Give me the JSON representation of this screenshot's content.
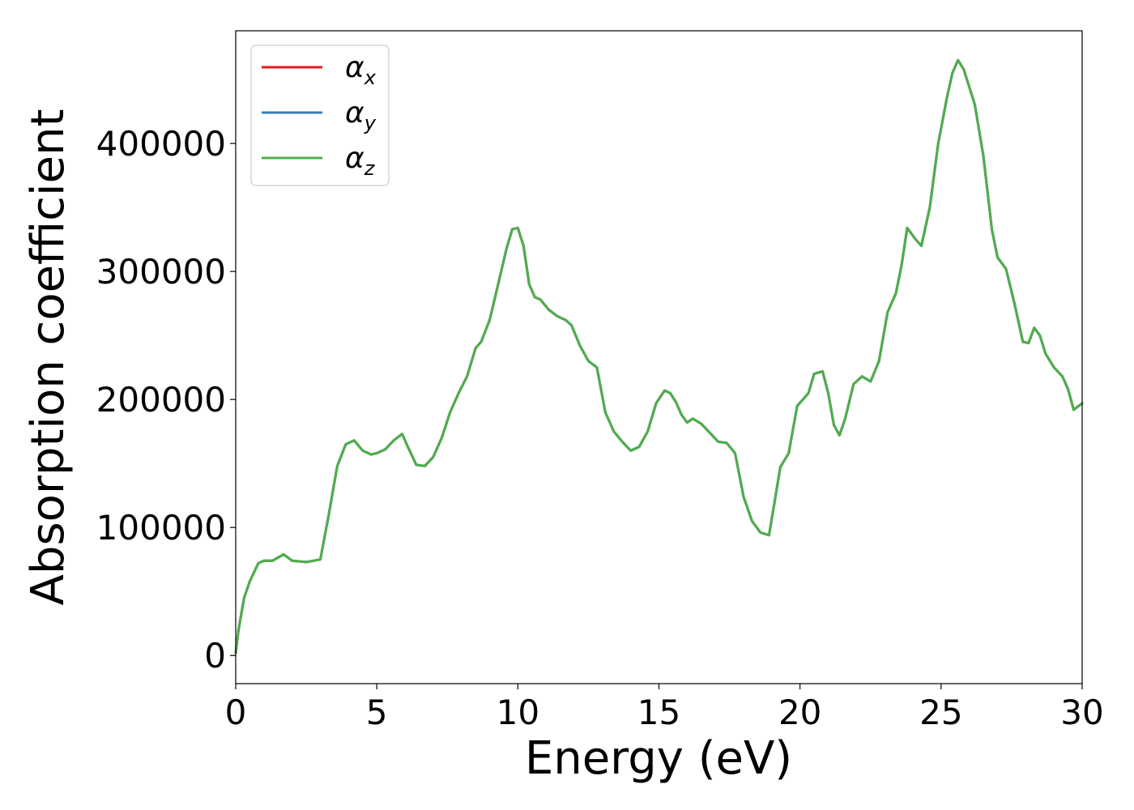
{
  "chart_data": {
    "type": "line",
    "title": "",
    "xlabel": "Energy (eV)",
    "ylabel": "Absorption coefficient",
    "xlim": [
      0,
      30
    ],
    "ylim": [
      -22000,
      488000
    ],
    "xticks": [
      0,
      5,
      10,
      15,
      20,
      25,
      30
    ],
    "xtick_labels": [
      "0",
      "5",
      "10",
      "15",
      "20",
      "25",
      "30"
    ],
    "yticks": [
      0,
      100000,
      200000,
      300000,
      400000
    ],
    "ytick_labels": [
      "0",
      "100000",
      "200000",
      "300000",
      "400000"
    ],
    "grid": false,
    "legend_position": "top-left",
    "x": [
      0,
      0.1,
      0.3,
      0.5,
      0.8,
      1.0,
      1.3,
      1.7,
      2.0,
      2.5,
      3.0,
      3.3,
      3.6,
      3.9,
      4.2,
      4.5,
      4.8,
      5.0,
      5.3,
      5.6,
      5.9,
      6.1,
      6.4,
      6.7,
      7.0,
      7.3,
      7.6,
      7.9,
      8.2,
      8.5,
      8.7,
      9.0,
      9.3,
      9.6,
      9.8,
      10.0,
      10.2,
      10.4,
      10.6,
      10.8,
      11.1,
      11.4,
      11.7,
      11.9,
      12.2,
      12.5,
      12.8,
      13.1,
      13.4,
      13.7,
      14.0,
      14.3,
      14.6,
      14.9,
      15.2,
      15.4,
      15.6,
      15.8,
      16.0,
      16.2,
      16.5,
      16.8,
      17.1,
      17.4,
      17.7,
      18.0,
      18.3,
      18.6,
      18.9,
      19.1,
      19.3,
      19.6,
      19.9,
      20.1,
      20.3,
      20.5,
      20.8,
      21.0,
      21.2,
      21.4,
      21.6,
      21.9,
      22.2,
      22.5,
      22.8,
      23.1,
      23.4,
      23.6,
      23.8,
      24.1,
      24.3,
      24.6,
      24.9,
      25.2,
      25.4,
      25.6,
      25.8,
      26.0,
      26.2,
      26.5,
      26.8,
      27.0,
      27.3,
      27.6,
      27.9,
      28.1,
      28.3,
      28.5,
      28.7,
      29.0,
      29.3,
      29.5,
      29.7,
      30.0
    ],
    "series": [
      {
        "name": "αx",
        "values": [
          2000,
          20000,
          45000,
          58000,
          72000,
          74000,
          74000,
          79000,
          74000,
          73000,
          75000,
          110000,
          148000,
          165000,
          168000,
          160000,
          157000,
          158000,
          161000,
          168000,
          173000,
          163000,
          149000,
          148000,
          155000,
          170000,
          190000,
          205000,
          218000,
          240000,
          245000,
          262000,
          290000,
          318000,
          333000,
          334000,
          320000,
          290000,
          280000,
          278000,
          270000,
          265000,
          262000,
          258000,
          242000,
          230000,
          225000,
          190000,
          175000,
          167000,
          160000,
          163000,
          175000,
          197000,
          207000,
          205000,
          198000,
          188000,
          182000,
          185000,
          181000,
          174000,
          167000,
          166000,
          158000,
          124000,
          105000,
          96000,
          94000,
          120000,
          147000,
          158000,
          195000,
          200000,
          205000,
          220000,
          222000,
          205000,
          180000,
          172000,
          185000,
          212000,
          218000,
          214000,
          230000,
          268000,
          283000,
          305000,
          334000,
          325000,
          320000,
          350000,
          400000,
          435000,
          455000,
          465000,
          458000,
          444000,
          430000,
          390000,
          333000,
          311000,
          302000,
          275000,
          245000,
          244000,
          256000,
          250000,
          236000,
          225000,
          218000,
          208000,
          192000,
          197000
        ]
      },
      {
        "name": "αy",
        "values": [
          2000,
          20000,
          45000,
          58000,
          72000,
          74000,
          74000,
          79000,
          74000,
          73000,
          75000,
          110000,
          148000,
          165000,
          168000,
          160000,
          157000,
          158000,
          161000,
          168000,
          173000,
          163000,
          149000,
          148000,
          155000,
          170000,
          190000,
          205000,
          218000,
          240000,
          245000,
          262000,
          290000,
          318000,
          333000,
          334000,
          320000,
          290000,
          280000,
          278000,
          270000,
          265000,
          262000,
          258000,
          242000,
          230000,
          225000,
          190000,
          175000,
          167000,
          160000,
          163000,
          175000,
          197000,
          207000,
          205000,
          198000,
          188000,
          182000,
          185000,
          181000,
          174000,
          167000,
          166000,
          158000,
          124000,
          105000,
          96000,
          94000,
          120000,
          147000,
          158000,
          195000,
          200000,
          205000,
          220000,
          222000,
          205000,
          180000,
          172000,
          185000,
          212000,
          218000,
          214000,
          230000,
          268000,
          283000,
          305000,
          334000,
          325000,
          320000,
          350000,
          400000,
          435000,
          455000,
          465000,
          458000,
          444000,
          430000,
          390000,
          333000,
          311000,
          302000,
          275000,
          245000,
          244000,
          256000,
          250000,
          236000,
          225000,
          218000,
          208000,
          192000,
          197000
        ]
      },
      {
        "name": "αz",
        "values": [
          2000,
          20000,
          45000,
          58000,
          72000,
          74000,
          74000,
          79000,
          74000,
          73000,
          75000,
          110000,
          148000,
          165000,
          168000,
          160000,
          157000,
          158000,
          161000,
          168000,
          173000,
          163000,
          149000,
          148000,
          155000,
          170000,
          190000,
          205000,
          218000,
          240000,
          245000,
          262000,
          290000,
          318000,
          333000,
          334000,
          320000,
          290000,
          280000,
          278000,
          270000,
          265000,
          262000,
          258000,
          242000,
          230000,
          225000,
          190000,
          175000,
          167000,
          160000,
          163000,
          175000,
          197000,
          207000,
          205000,
          198000,
          188000,
          182000,
          185000,
          181000,
          174000,
          167000,
          166000,
          158000,
          124000,
          105000,
          96000,
          94000,
          120000,
          147000,
          158000,
          195000,
          200000,
          205000,
          220000,
          222000,
          205000,
          180000,
          172000,
          185000,
          212000,
          218000,
          214000,
          230000,
          268000,
          283000,
          305000,
          334000,
          325000,
          320000,
          350000,
          400000,
          435000,
          455000,
          465000,
          458000,
          444000,
          430000,
          390000,
          333000,
          311000,
          302000,
          275000,
          245000,
          244000,
          256000,
          250000,
          236000,
          225000,
          218000,
          208000,
          192000,
          197000
        ]
      }
    ],
    "legend": [
      {
        "symbol": "α",
        "subscript": "x",
        "color": "#e41a1c"
      },
      {
        "symbol": "α",
        "subscript": "y",
        "color": "#377eb8"
      },
      {
        "symbol": "α",
        "subscript": "z",
        "color": "#4daf4a"
      }
    ]
  }
}
